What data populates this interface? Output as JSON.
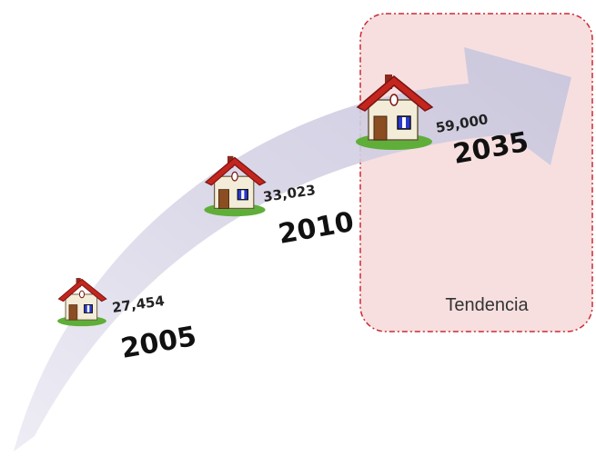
{
  "points": [
    {
      "amount": "27,454",
      "year": "2005"
    },
    {
      "amount": "33,023",
      "year": "2010"
    },
    {
      "amount": "59,000",
      "year": "2035"
    }
  ],
  "trend_box": {
    "label": "Tendencia"
  }
}
